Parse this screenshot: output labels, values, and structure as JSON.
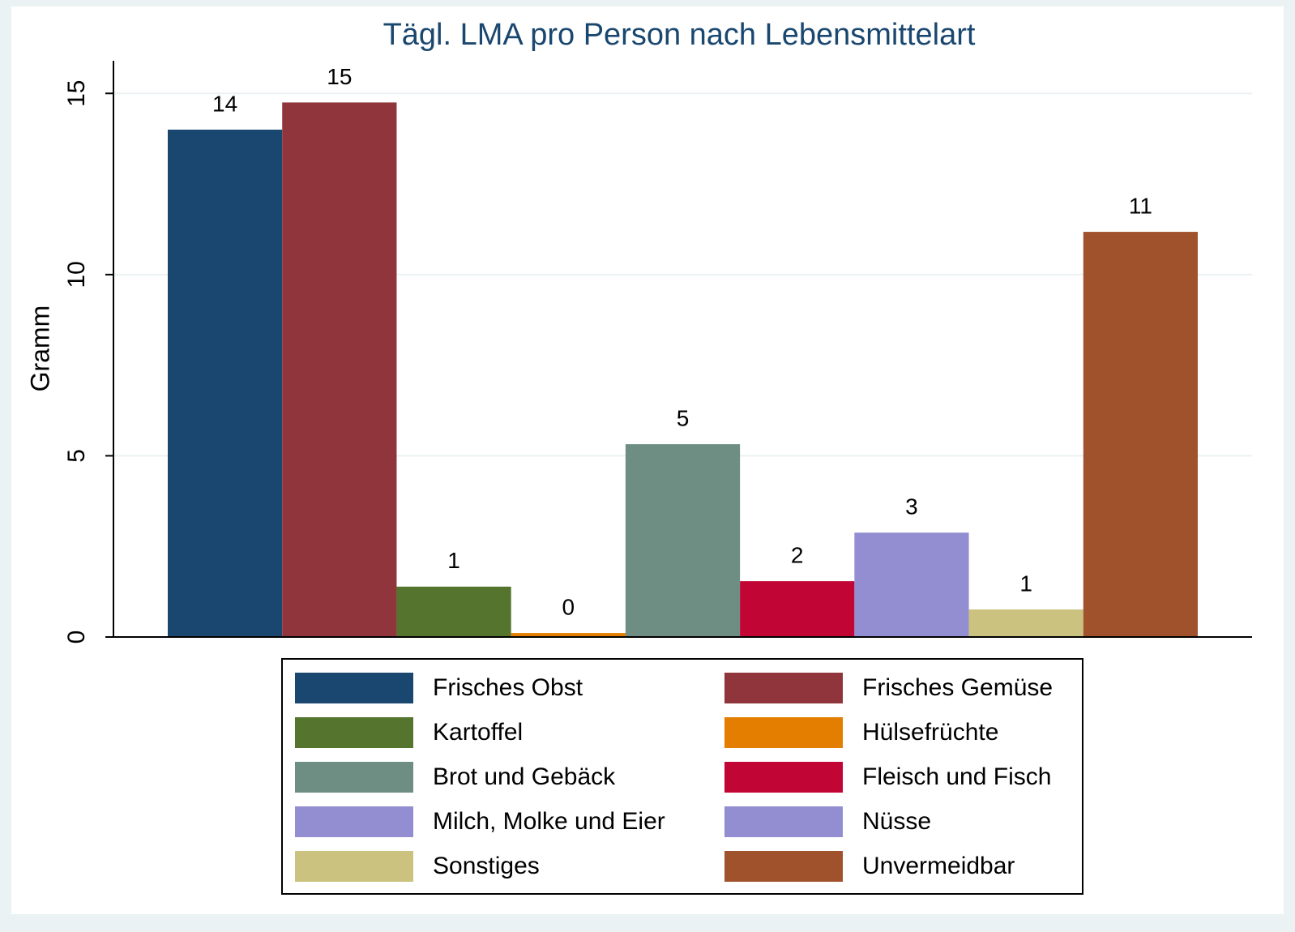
{
  "chart_data": {
    "type": "bar",
    "title": "Tägl. LMA pro Person nach Lebensmittelart",
    "y_label": "Gramm",
    "ylim": [
      0,
      15.9
    ],
    "yticks": [
      0,
      5,
      10,
      15
    ],
    "grid": true,
    "legend": "bottom",
    "series": [
      {
        "name": "Frisches Obst",
        "color": "#1a476f",
        "values": [
          14.0
        ],
        "value_labels": [
          "14"
        ]
      },
      {
        "name": "Frisches Gemüse",
        "color": "#90353b",
        "values": [
          14.75
        ],
        "value_labels": [
          "15"
        ]
      },
      {
        "name": "Kartoffel",
        "color": "#55752f",
        "values": [
          1.39
        ],
        "value_labels": [
          "1"
        ]
      },
      {
        "name": "Hülsefrüchte",
        "color": "#e37e00",
        "values": [
          0.11
        ],
        "value_labels": [
          "0"
        ]
      },
      {
        "name": "Brot und Gebäck",
        "color": "#6e8e84",
        "values": [
          5.32
        ],
        "value_labels": [
          "5"
        ]
      },
      {
        "name": "Fleisch und Fisch",
        "color": "#c10534",
        "values": [
          1.54
        ],
        "value_labels": [
          "2"
        ]
      },
      {
        "name": "Milch, Molke und Eier",
        "color": "#938dd2",
        "values": [
          null
        ],
        "value_labels": [
          null
        ]
      },
      {
        "name": "Nüsse",
        "color": "#938dd2",
        "values": [
          2.88
        ],
        "value_labels": [
          "3"
        ]
      },
      {
        "name": "Sonstiges",
        "color": "#cac27e",
        "values": [
          0.76
        ],
        "value_labels": [
          "1"
        ]
      },
      {
        "name": "Unvermeidbar",
        "color": "#a0522d",
        "values": [
          11.18
        ],
        "value_labels": [
          "11"
        ]
      }
    ]
  }
}
